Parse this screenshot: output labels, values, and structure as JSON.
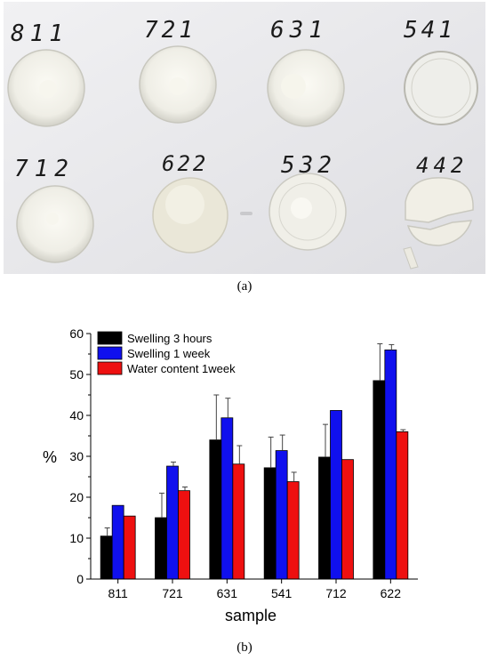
{
  "panel_a": {
    "caption": "(a)",
    "sample_labels": [
      "811",
      "721",
      "631",
      "541",
      "712",
      "622",
      "532",
      "442"
    ]
  },
  "panel_b": {
    "caption": "(b)"
  },
  "chart_data": {
    "type": "bar",
    "title": "",
    "xlabel": "sample",
    "ylabel": "%",
    "ylim": [
      0,
      60
    ],
    "yticks": [
      0,
      10,
      20,
      30,
      40,
      50,
      60
    ],
    "categories": [
      "811",
      "721",
      "631",
      "541",
      "712",
      "622"
    ],
    "legend_position": "top-left",
    "series": [
      {
        "name": "Swelling 3 hours",
        "color": "#000000",
        "values": [
          10.5,
          15.0,
          34.0,
          27.2,
          29.8,
          48.5
        ],
        "errors": [
          2.0,
          6.0,
          11.0,
          7.5,
          8.0,
          9.0
        ]
      },
      {
        "name": "Swelling 1 week",
        "color": "#1010ee",
        "values": [
          18.0,
          27.6,
          39.4,
          31.4,
          41.2,
          56.0
        ],
        "errors": [
          0.0,
          1.0,
          4.8,
          3.8,
          0.0,
          1.3
        ]
      },
      {
        "name": "Water content 1week",
        "color": "#ee1010",
        "values": [
          15.4,
          21.6,
          28.1,
          23.8,
          29.2,
          36.0
        ],
        "errors": [
          0.0,
          0.9,
          4.5,
          2.3,
          0.0,
          0.5
        ]
      }
    ]
  }
}
